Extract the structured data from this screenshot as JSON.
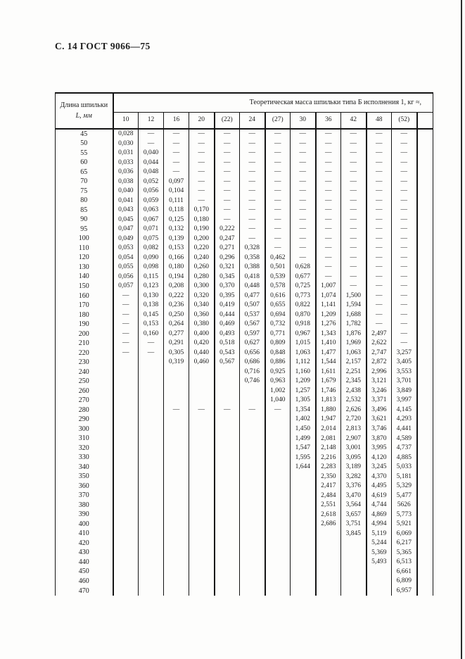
{
  "page": {
    "title": "С. 14 ГОСТ 9066—75"
  },
  "table": {
    "length_header_line1": "Длина шпильки",
    "length_header_line2": "L, мм",
    "span_header": "Теоретическая масса шпильки типа Б исполнения 1, кг ≈,",
    "columns": [
      "10",
      "12",
      "16",
      "20",
      "(22)",
      "24",
      "(27)",
      "30",
      "36",
      "42",
      "48",
      "(52)"
    ],
    "rows": [
      {
        "l": "45",
        "v": [
          "0,028",
          "—",
          "—",
          "—",
          "—",
          "—",
          "—",
          "—",
          "—",
          "—",
          "—",
          "—"
        ]
      },
      {
        "l": "50",
        "v": [
          "0,030",
          "—",
          "—",
          "—",
          "—",
          "—",
          "—",
          "—",
          "—",
          "—",
          "—",
          "—"
        ]
      },
      {
        "l": "55",
        "v": [
          "0,031",
          "0,040",
          "—",
          "—",
          "—",
          "—",
          "—",
          "—",
          "—",
          "—",
          "—",
          "—"
        ]
      },
      {
        "l": "60",
        "v": [
          "0,033",
          "0,044",
          "—",
          "—",
          "—",
          "—",
          "—",
          "—",
          "—",
          "—",
          "—",
          "—"
        ]
      },
      {
        "l": "65",
        "v": [
          "0,036",
          "0,048",
          "—",
          "—",
          "—",
          "—",
          "—",
          "—",
          "—",
          "—",
          "—",
          "—"
        ]
      },
      {
        "l": "70",
        "v": [
          "0,038",
          "0,052",
          "0,097",
          "—",
          "—",
          "—",
          "—",
          "—",
          "—",
          "—",
          "—",
          "—"
        ]
      },
      {
        "l": "75",
        "v": [
          "0,040",
          "0,056",
          "0,104",
          "—",
          "—",
          "—",
          "—",
          "—",
          "—",
          "—",
          "—",
          "—"
        ]
      },
      {
        "l": "80",
        "v": [
          "0,041",
          "0,059",
          "0,111",
          "—",
          "—",
          "—",
          "—",
          "—",
          "—",
          "—",
          "—",
          "—"
        ]
      },
      {
        "l": "85",
        "v": [
          "0,043",
          "0,063",
          "0,118",
          "0,170",
          "—",
          "—",
          "—",
          "—",
          "—",
          "—",
          "—",
          "—"
        ]
      },
      {
        "l": "90",
        "v": [
          "0,045",
          "0,067",
          "0,125",
          "0,180",
          "—",
          "—",
          "—",
          "—",
          "—",
          "—",
          "—",
          "—"
        ]
      },
      {
        "l": "95",
        "v": [
          "0,047",
          "0,071",
          "0,132",
          "0,190",
          "0,222",
          "—",
          "—",
          "—",
          "—",
          "—",
          "—",
          "—"
        ]
      },
      {
        "l": "100",
        "v": [
          "0,049",
          "0,075",
          "0,139",
          "0,200",
          "0,247",
          "—",
          "—",
          "—",
          "—",
          "—",
          "—",
          "—"
        ]
      },
      {
        "l": "110",
        "v": [
          "0,053",
          "0,082",
          "0,153",
          "0,220",
          "0,271",
          "0,328",
          "—",
          "—",
          "—",
          "—",
          "—",
          "—"
        ]
      },
      {
        "l": "120",
        "v": [
          "0,054",
          "0,090",
          "0,166",
          "0,240",
          "0,296",
          "0,358",
          "0,462",
          "—",
          "—",
          "—",
          "—",
          "—"
        ]
      },
      {
        "l": "130",
        "v": [
          "0,055",
          "0,098",
          "0,180",
          "0,260",
          "0,321",
          "0,388",
          "0,501",
          "0,628",
          "—",
          "—",
          "—",
          "—"
        ]
      },
      {
        "l": "140",
        "v": [
          "0,056",
          "0,115",
          "0,194",
          "0,280",
          "0,345",
          "0,418",
          "0,539",
          "0,677",
          "—",
          "—",
          "—",
          "—"
        ]
      },
      {
        "l": "150",
        "v": [
          "0,057",
          "0,123",
          "0,208",
          "0,300",
          "0,370",
          "0,448",
          "0,578",
          "0,725",
          "1,007",
          "—",
          "—",
          "—"
        ]
      },
      {
        "l": "160",
        "v": [
          "—",
          "0,130",
          "0,222",
          "0,320",
          "0,395",
          "0,477",
          "0,616",
          "0,773",
          "1,074",
          "1,500",
          "—",
          "—"
        ]
      },
      {
        "l": "170",
        "v": [
          "—",
          "0,138",
          "0,236",
          "0,340",
          "0,419",
          "0,507",
          "0,655",
          "0,822",
          "1,141",
          "1,594",
          "—",
          "—"
        ]
      },
      {
        "l": "180",
        "v": [
          "—",
          "0,145",
          "0,250",
          "0,360",
          "0,444",
          "0,537",
          "0,694",
          "0,870",
          "1,209",
          "1,688",
          "—",
          "—"
        ]
      },
      {
        "l": "190",
        "v": [
          "—",
          "0,153",
          "0,264",
          "0,380",
          "0,469",
          "0,567",
          "0,732",
          "0,918",
          "1,276",
          "1,782",
          "—",
          "—"
        ]
      },
      {
        "l": "200",
        "v": [
          "—",
          "0,160",
          "0,277",
          "0,400",
          "0,493",
          "0,597",
          "0,771",
          "0,967",
          "1,343",
          "1,876",
          "2,497",
          "—"
        ]
      },
      {
        "l": "210",
        "v": [
          "—",
          "—",
          "0,291",
          "0,420",
          "0,518",
          "0,627",
          "0,809",
          "1,015",
          "1,410",
          "1,969",
          "2,622",
          "—"
        ]
      },
      {
        "l": "220",
        "v": [
          "—",
          "—",
          "0,305",
          "0,440",
          "0,543",
          "0,656",
          "0,848",
          "1,063",
          "1,477",
          "1,063",
          "2,747",
          "3,257"
        ]
      },
      {
        "l": "230",
        "v": [
          "",
          "",
          "0,319",
          "0,460",
          "0,567",
          "0,686",
          "0,886",
          "1,112",
          "1,544",
          "2,157",
          "2,872",
          "3,405"
        ]
      },
      {
        "l": "240",
        "v": [
          "",
          "",
          "",
          "",
          "",
          "0,716",
          "0,925",
          "1,160",
          "1,611",
          "2,251",
          "2,996",
          "3,553"
        ]
      },
      {
        "l": "250",
        "v": [
          "",
          "",
          "",
          "",
          "",
          "0,746",
          "0,963",
          "1,209",
          "1,679",
          "2,345",
          "3,121",
          "3,701"
        ]
      },
      {
        "l": "260",
        "v": [
          "",
          "",
          "",
          "",
          "",
          "",
          "1,002",
          "1,257",
          "1,746",
          "2,438",
          "3,246",
          "3,849"
        ]
      },
      {
        "l": "270",
        "v": [
          "",
          "",
          "",
          "",
          "",
          "",
          "1,040",
          "1,305",
          "1,813",
          "2,532",
          "3,371",
          "3,997"
        ]
      },
      {
        "l": "280",
        "v": [
          "",
          "",
          "—",
          "—",
          "—",
          "—",
          "—",
          "1,354",
          "1,880",
          "2,626",
          "3,496",
          "4,145"
        ]
      },
      {
        "l": "290",
        "v": [
          "",
          "",
          "",
          "",
          "",
          "",
          "",
          "1,402",
          "1,947",
          "2,720",
          "3,621",
          "4,293"
        ]
      },
      {
        "l": "300",
        "v": [
          "",
          "",
          "",
          "",
          "",
          "",
          "",
          "1,450",
          "2,014",
          "2,813",
          "3,746",
          "4,441"
        ]
      },
      {
        "l": "310",
        "v": [
          "",
          "",
          "",
          "",
          "",
          "",
          "",
          "1,499",
          "2,081",
          "2,907",
          "3,870",
          "4,589"
        ]
      },
      {
        "l": "320",
        "v": [
          "",
          "",
          "",
          "",
          "",
          "",
          "",
          "1,547",
          "2,148",
          "3,001",
          "3,995",
          "4,737"
        ]
      },
      {
        "l": "330",
        "v": [
          "",
          "",
          "",
          "",
          "",
          "",
          "",
          "1,595",
          "2,216",
          "3,095",
          "4,120",
          "4,885"
        ]
      },
      {
        "l": "340",
        "v": [
          "",
          "",
          "",
          "",
          "",
          "",
          "",
          "1,644",
          "2,283",
          "3,189",
          "3,245",
          "5,033"
        ]
      },
      {
        "l": "350",
        "v": [
          "",
          "",
          "",
          "",
          "",
          "",
          "",
          "",
          "2,350",
          "3,282",
          "4,370",
          "5,181"
        ]
      },
      {
        "l": "360",
        "v": [
          "",
          "",
          "",
          "",
          "",
          "",
          "",
          "",
          "2,417",
          "3,376",
          "4,495",
          "5,329"
        ]
      },
      {
        "l": "370",
        "v": [
          "",
          "",
          "",
          "",
          "",
          "",
          "",
          "",
          "2,484",
          "3,470",
          "4,619",
          "5,477"
        ]
      },
      {
        "l": "380",
        "v": [
          "",
          "",
          "",
          "",
          "",
          "",
          "",
          "",
          "2,551",
          "3,564",
          "4,744",
          "5626"
        ]
      },
      {
        "l": "390",
        "v": [
          "",
          "",
          "",
          "",
          "",
          "",
          "",
          "",
          "2,618",
          "3,657",
          "4,869",
          "5,773"
        ]
      },
      {
        "l": "400",
        "v": [
          "",
          "",
          "",
          "",
          "",
          "",
          "",
          "",
          "2,686",
          "3,751",
          "4,994",
          "5,921"
        ]
      },
      {
        "l": "410",
        "v": [
          "",
          "",
          "",
          "",
          "",
          "",
          "",
          "",
          "",
          "3,845",
          "5,119",
          "6,069"
        ]
      },
      {
        "l": "420",
        "v": [
          "",
          "",
          "",
          "",
          "",
          "",
          "",
          "",
          "",
          "",
          "5,244",
          "6,217"
        ]
      },
      {
        "l": "430",
        "v": [
          "",
          "",
          "",
          "",
          "",
          "",
          "",
          "",
          "",
          "",
          "5,369",
          "5,365"
        ]
      },
      {
        "l": "440",
        "v": [
          "",
          "",
          "",
          "",
          "",
          "",
          "",
          "",
          "",
          "",
          "5,493",
          "6,513"
        ]
      },
      {
        "l": "450",
        "v": [
          "",
          "",
          "",
          "",
          "",
          "",
          "",
          "",
          "",
          "",
          "",
          "6,661"
        ]
      },
      {
        "l": "460",
        "v": [
          "",
          "",
          "",
          "",
          "",
          "",
          "",
          "",
          "",
          "",
          "",
          "6,809"
        ]
      },
      {
        "l": "470",
        "v": [
          "",
          "",
          "",
          "",
          "",
          "",
          "",
          "",
          "",
          "",
          "",
          "6,957"
        ]
      }
    ]
  }
}
